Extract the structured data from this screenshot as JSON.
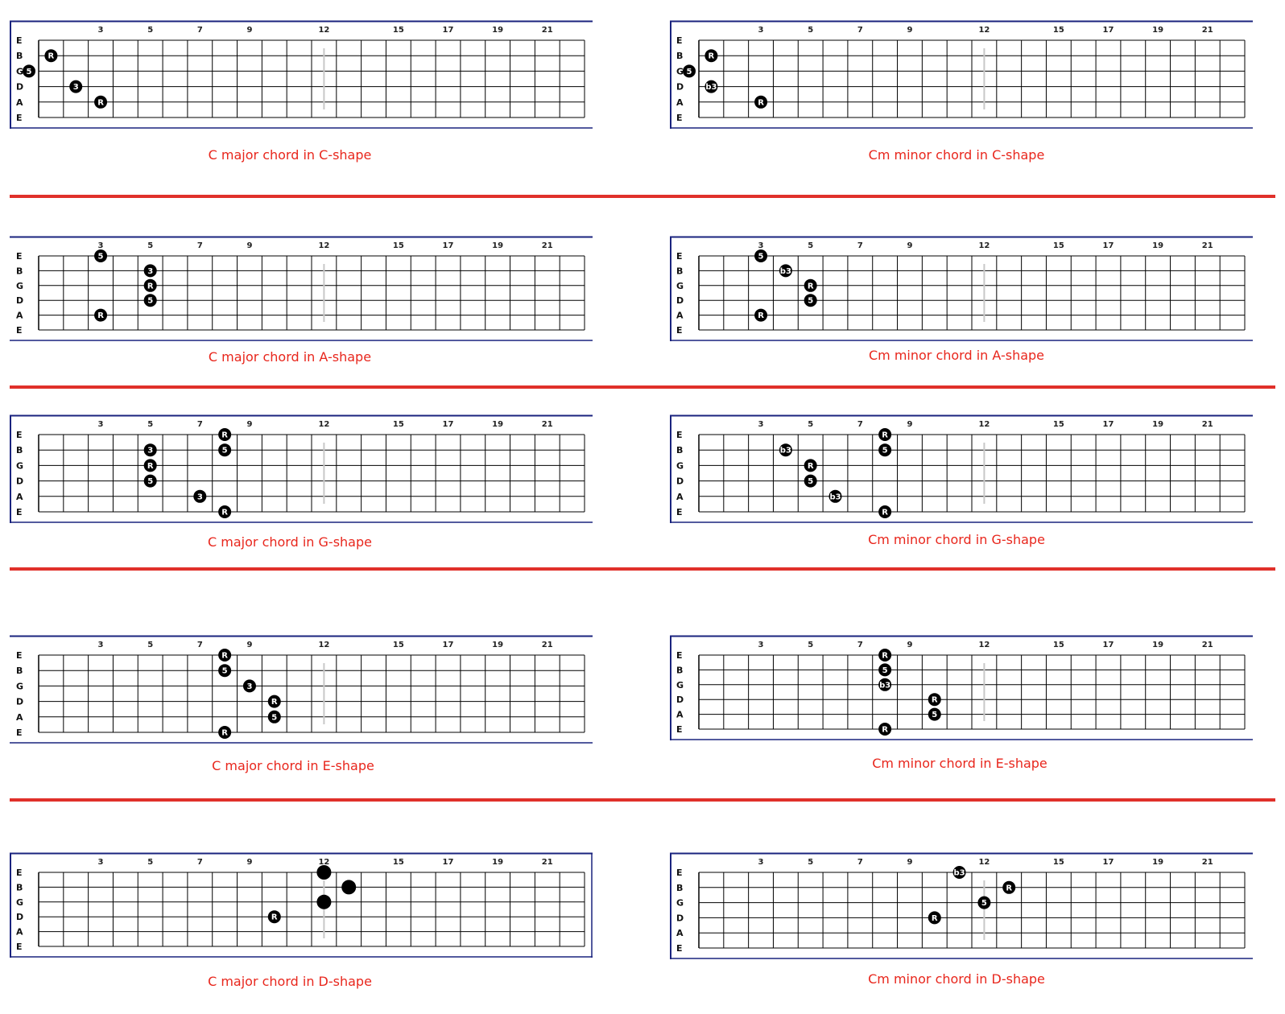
{
  "fretboard": {
    "strings": [
      "E",
      "B",
      "G",
      "D",
      "A",
      "E"
    ],
    "fret_markers": [
      "3",
      "5",
      "7",
      "9",
      "12",
      "15",
      "17",
      "19",
      "21"
    ],
    "fret_marker_positions": [
      3,
      5,
      7,
      9,
      12,
      15,
      17,
      19,
      21
    ],
    "num_frets": 22,
    "colors": {
      "frame": "#1a237e",
      "grid": "#000000",
      "note": "#000000",
      "note_text": "#ffffff",
      "marker12": "#c8c8c8",
      "caption": "#e8261c",
      "separator": "#e0302a"
    }
  },
  "diagrams": [
    {
      "caption": "C major chord in C-shape",
      "notes": [
        {
          "string": 1,
          "fret": 1,
          "label": "R"
        },
        {
          "string": 2,
          "fret": 0,
          "label": "5"
        },
        {
          "string": 3,
          "fret": 2,
          "label": "3"
        },
        {
          "string": 4,
          "fret": 3,
          "label": "R"
        }
      ]
    },
    {
      "caption": "Cm minor chord in C-shape",
      "notes": [
        {
          "string": 1,
          "fret": 1,
          "label": "R"
        },
        {
          "string": 2,
          "fret": 0,
          "label": "5"
        },
        {
          "string": 3,
          "fret": 1,
          "label": "b3"
        },
        {
          "string": 4,
          "fret": 3,
          "label": "R"
        }
      ]
    },
    {
      "caption": "C major chord in A-shape",
      "notes": [
        {
          "string": 0,
          "fret": 3,
          "label": "5"
        },
        {
          "string": 1,
          "fret": 5,
          "label": "3"
        },
        {
          "string": 2,
          "fret": 5,
          "label": "R"
        },
        {
          "string": 3,
          "fret": 5,
          "label": "5"
        },
        {
          "string": 4,
          "fret": 3,
          "label": "R"
        }
      ]
    },
    {
      "caption": "Cm minor chord in A-shape",
      "notes": [
        {
          "string": 0,
          "fret": 3,
          "label": "5"
        },
        {
          "string": 1,
          "fret": 4,
          "label": "b3"
        },
        {
          "string": 2,
          "fret": 5,
          "label": "R"
        },
        {
          "string": 3,
          "fret": 5,
          "label": "5"
        },
        {
          "string": 4,
          "fret": 3,
          "label": "R"
        }
      ]
    },
    {
      "caption": "C major chord in G-shape",
      "notes": [
        {
          "string": 0,
          "fret": 8,
          "label": "R"
        },
        {
          "string": 1,
          "fret": 8,
          "label": "5"
        },
        {
          "string": 1,
          "fret": 5,
          "label": "3"
        },
        {
          "string": 2,
          "fret": 5,
          "label": "R"
        },
        {
          "string": 3,
          "fret": 5,
          "label": "5"
        },
        {
          "string": 4,
          "fret": 7,
          "label": "3"
        },
        {
          "string": 5,
          "fret": 8,
          "label": "R"
        }
      ]
    },
    {
      "caption": "Cm minor chord in G-shape",
      "notes": [
        {
          "string": 0,
          "fret": 8,
          "label": "R"
        },
        {
          "string": 1,
          "fret": 8,
          "label": "5"
        },
        {
          "string": 1,
          "fret": 4,
          "label": "b3"
        },
        {
          "string": 2,
          "fret": 5,
          "label": "R"
        },
        {
          "string": 3,
          "fret": 5,
          "label": "5"
        },
        {
          "string": 4,
          "fret": 6,
          "label": "b3"
        },
        {
          "string": 5,
          "fret": 8,
          "label": "R"
        }
      ]
    },
    {
      "caption": "C major chord in E-shape",
      "notes": [
        {
          "string": 0,
          "fret": 8,
          "label": "R"
        },
        {
          "string": 1,
          "fret": 8,
          "label": "5"
        },
        {
          "string": 2,
          "fret": 9,
          "label": "3"
        },
        {
          "string": 3,
          "fret": 10,
          "label": "R"
        },
        {
          "string": 4,
          "fret": 10,
          "label": "5"
        },
        {
          "string": 5,
          "fret": 8,
          "label": "R"
        }
      ]
    },
    {
      "caption": "Cm minor chord in E-shape",
      "notes": [
        {
          "string": 0,
          "fret": 8,
          "label": "R"
        },
        {
          "string": 1,
          "fret": 8,
          "label": "5"
        },
        {
          "string": 2,
          "fret": 8,
          "label": "b3"
        },
        {
          "string": 3,
          "fret": 10,
          "label": "R"
        },
        {
          "string": 4,
          "fret": 10,
          "label": "5"
        },
        {
          "string": 5,
          "fret": 8,
          "label": "R"
        }
      ]
    },
    {
      "caption": "C major chord in D-shape",
      "notes": [
        {
          "string": 0,
          "fret": 12,
          "label": ""
        },
        {
          "string": 1,
          "fret": 13,
          "label": ""
        },
        {
          "string": 2,
          "fret": 12,
          "label": ""
        },
        {
          "string": 3,
          "fret": 10,
          "label": "R"
        }
      ]
    },
    {
      "caption": "Cm minor chord in D-shape",
      "notes": [
        {
          "string": 0,
          "fret": 11,
          "label": "b3"
        },
        {
          "string": 1,
          "fret": 13,
          "label": "R"
        },
        {
          "string": 2,
          "fret": 12,
          "label": "5"
        },
        {
          "string": 3,
          "fret": 10,
          "label": "R"
        }
      ]
    }
  ]
}
